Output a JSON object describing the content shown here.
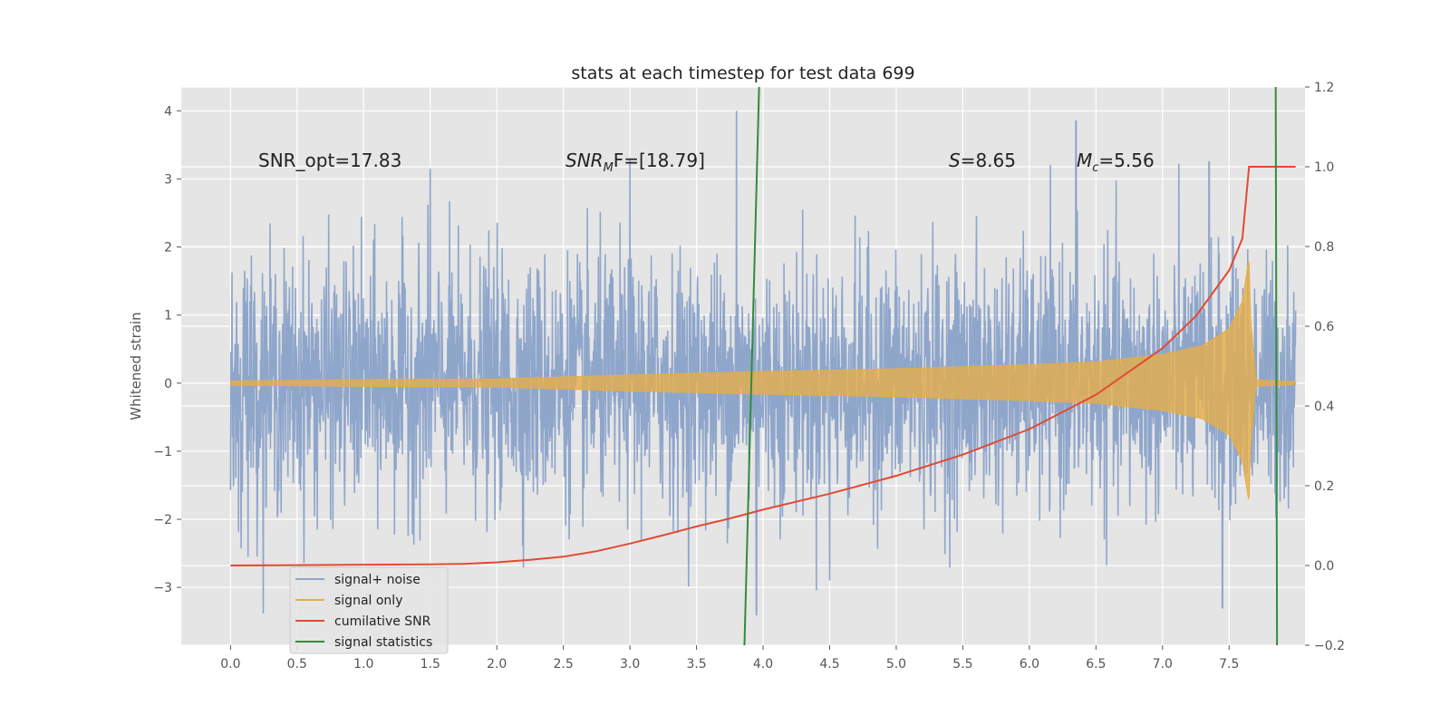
{
  "chart_data": {
    "type": "line",
    "title": "stats at each timestep for test data 699",
    "xlabel": "",
    "ylabel": "Whitened strain",
    "xlim": [
      -0.37,
      8.07
    ],
    "ylim": [
      -3.85,
      4.35
    ],
    "ylim_right": [
      -0.2,
      1.2
    ],
    "grid": true,
    "legend_position": "lower-left",
    "x_ticks": [
      "0.0",
      "0.5",
      "1.0",
      "1.5",
      "2.0",
      "2.5",
      "3.0",
      "3.5",
      "4.0",
      "4.5",
      "5.0",
      "5.5",
      "6.0",
      "6.5",
      "7.0",
      "7.5"
    ],
    "y_ticks_left": [
      "4",
      "3",
      "2",
      "1",
      "0",
      "−1",
      "−2",
      "−3"
    ],
    "y_ticks_right": [
      "1.2",
      "1.0",
      "0.8",
      "0.6",
      "0.4",
      "0.2",
      "0.0",
      "−0.2"
    ],
    "annotations": {
      "snr_opt": "SNR_opt=17.83",
      "snr_mf_prefix": "SNR",
      "snr_mf_sub": "M",
      "snr_mf_suffix": "F=[18.79]",
      "s_label": "S",
      "s_value": "=8.65",
      "mc_label": "M",
      "mc_sub": "c",
      "mc_value": "=5.56"
    },
    "series": [
      {
        "name": "signal+ noise",
        "axis": "left",
        "color": "#8fa6cb",
        "style": "dense noise",
        "time_range": [
          0.0,
          8.0
        ],
        "amplitude_std": 0.9,
        "notable_peaks": [
          [
            3.8,
            4.0
          ],
          [
            6.35,
            3.85
          ],
          [
            7.35,
            3.25
          ],
          [
            1.5,
            3.15
          ],
          [
            3.0,
            3.3
          ]
        ],
        "notable_troughs": [
          [
            3.95,
            -3.4
          ],
          [
            7.45,
            -3.3
          ],
          [
            4.5,
            -2.9
          ]
        ]
      },
      {
        "name": "signal only",
        "axis": "left",
        "color": "#e5ae48",
        "style": "chirp envelope",
        "envelope": {
          "t": [
            0.0,
            1.0,
            2.0,
            3.0,
            4.0,
            5.0,
            6.0,
            6.5,
            7.0,
            7.3,
            7.5,
            7.6,
            7.65,
            7.66,
            7.7,
            8.0
          ],
          "a": [
            0.03,
            0.05,
            0.06,
            0.12,
            0.17,
            0.21,
            0.27,
            0.31,
            0.42,
            0.55,
            0.8,
            1.2,
            1.85,
            1.0,
            0.05,
            0.02
          ]
        }
      },
      {
        "name": "cumilative SNR",
        "axis": "right",
        "color": "#e24a33",
        "x": [
          0.0,
          0.5,
          1.0,
          1.5,
          1.75,
          2.0,
          2.25,
          2.5,
          2.75,
          3.0,
          3.25,
          3.5,
          3.75,
          4.0,
          4.5,
          5.0,
          5.5,
          6.0,
          6.5,
          7.0,
          7.25,
          7.5,
          7.6,
          7.65,
          8.0
        ],
        "y": [
          0.0,
          0.001,
          0.002,
          0.003,
          0.004,
          0.008,
          0.014,
          0.022,
          0.036,
          0.055,
          0.076,
          0.098,
          0.118,
          0.14,
          0.18,
          0.225,
          0.278,
          0.342,
          0.428,
          0.545,
          0.625,
          0.74,
          0.82,
          1.0,
          1.0
        ]
      },
      {
        "name": "signal statistics",
        "axis": "right",
        "color": "#348a3e",
        "segments": [
          {
            "x": [
              3.86,
              3.97
            ],
            "y": [
              -0.2,
              1.2
            ]
          },
          {
            "x": [
              7.85,
              7.86
            ],
            "y": [
              1.2,
              -0.2
            ]
          }
        ]
      }
    ],
    "legend": [
      "signal+ noise",
      "signal only",
      "cumilative SNR",
      "signal statistics"
    ]
  }
}
